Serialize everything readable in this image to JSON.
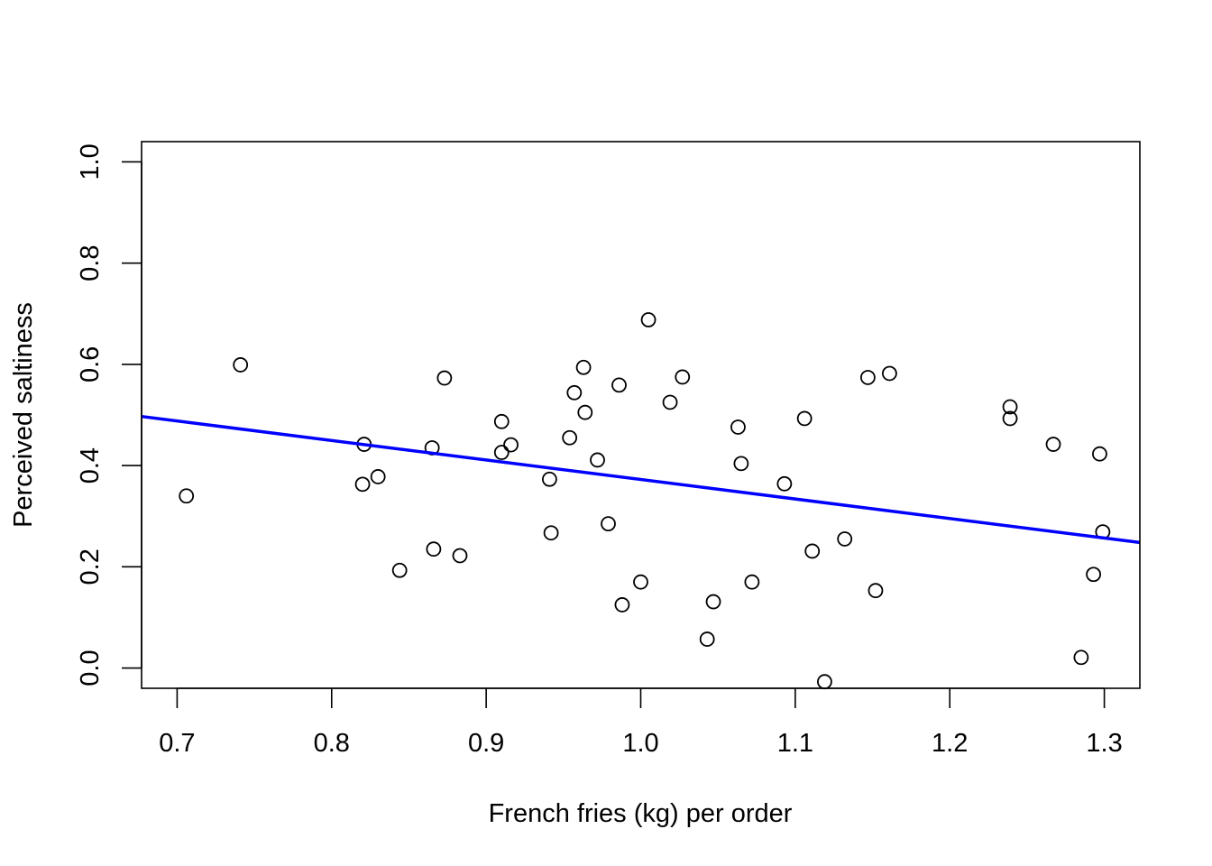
{
  "chart_data": {
    "type": "scatter",
    "title": "",
    "xlabel": "French fries (kg) per order",
    "ylabel": "Perceived saltiness",
    "xlim": [
      0.677,
      1.323
    ],
    "ylim": [
      -0.04,
      1.04
    ],
    "x_ticks": [
      0.7,
      0.8,
      0.9,
      1.0,
      1.1,
      1.2,
      1.3
    ],
    "x_tick_labels": [
      "0.7",
      "0.8",
      "0.9",
      "1.0",
      "1.1",
      "1.2",
      "1.3"
    ],
    "y_ticks": [
      0.0,
      0.2,
      0.4,
      0.6,
      0.8,
      1.0
    ],
    "y_tick_labels": [
      "0.0",
      "0.2",
      "0.4",
      "0.6",
      "0.8",
      "1.0"
    ],
    "grid": false,
    "point_style": "open-circle",
    "point_color": "#000000",
    "fit_line": {
      "color": "#0000ff",
      "x": [
        0.677,
        1.323
      ],
      "y": [
        0.497,
        0.248
      ]
    },
    "points": [
      {
        "x": 0.706,
        "y": 0.34
      },
      {
        "x": 0.741,
        "y": 0.599
      },
      {
        "x": 0.82,
        "y": 0.363
      },
      {
        "x": 0.821,
        "y": 0.442
      },
      {
        "x": 0.83,
        "y": 0.378
      },
      {
        "x": 0.844,
        "y": 0.193
      },
      {
        "x": 0.865,
        "y": 0.435
      },
      {
        "x": 0.866,
        "y": 0.235
      },
      {
        "x": 0.873,
        "y": 0.573
      },
      {
        "x": 0.883,
        "y": 0.222
      },
      {
        "x": 0.91,
        "y": 0.487
      },
      {
        "x": 0.91,
        "y": 0.426
      },
      {
        "x": 0.916,
        "y": 0.441
      },
      {
        "x": 0.941,
        "y": 0.373
      },
      {
        "x": 0.942,
        "y": 0.267
      },
      {
        "x": 0.954,
        "y": 0.455
      },
      {
        "x": 0.957,
        "y": 0.544
      },
      {
        "x": 0.963,
        "y": 0.594
      },
      {
        "x": 0.964,
        "y": 0.505
      },
      {
        "x": 0.972,
        "y": 0.411
      },
      {
        "x": 0.979,
        "y": 0.285
      },
      {
        "x": 0.986,
        "y": 0.559
      },
      {
        "x": 0.988,
        "y": 0.125
      },
      {
        "x": 1.0,
        "y": 0.17
      },
      {
        "x": 1.005,
        "y": 0.688
      },
      {
        "x": 1.019,
        "y": 0.525
      },
      {
        "x": 1.027,
        "y": 0.575
      },
      {
        "x": 1.043,
        "y": 0.057
      },
      {
        "x": 1.047,
        "y": 0.131
      },
      {
        "x": 1.063,
        "y": 0.476
      },
      {
        "x": 1.065,
        "y": 0.404
      },
      {
        "x": 1.072,
        "y": 0.17
      },
      {
        "x": 1.093,
        "y": 0.364
      },
      {
        "x": 1.106,
        "y": 0.493
      },
      {
        "x": 1.111,
        "y": 0.231
      },
      {
        "x": 1.119,
        "y": -0.027
      },
      {
        "x": 1.132,
        "y": 0.255
      },
      {
        "x": 1.147,
        "y": 0.574
      },
      {
        "x": 1.152,
        "y": 0.153
      },
      {
        "x": 1.161,
        "y": 0.582
      },
      {
        "x": 1.239,
        "y": 0.516
      },
      {
        "x": 1.239,
        "y": 0.493
      },
      {
        "x": 1.267,
        "y": 0.442
      },
      {
        "x": 1.285,
        "y": 0.021
      },
      {
        "x": 1.293,
        "y": 0.185
      },
      {
        "x": 1.297,
        "y": 0.423
      },
      {
        "x": 1.299,
        "y": 0.269
      }
    ]
  }
}
